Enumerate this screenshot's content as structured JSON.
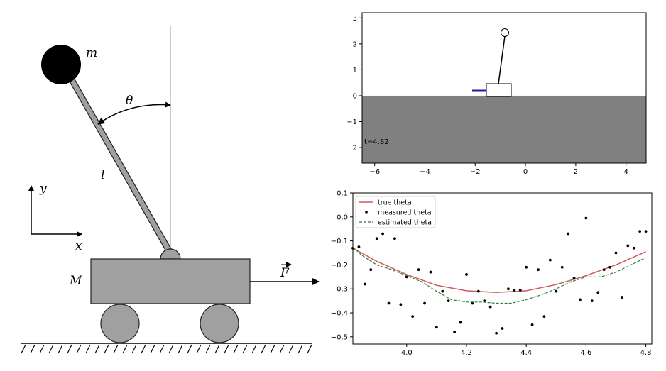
{
  "diagram": {
    "mass_label": "m",
    "angle_label": "θ",
    "length_label": "l",
    "y_axis_label": "y",
    "x_axis_label": "x",
    "cart_mass_label": "M",
    "force_label": "F"
  },
  "sim_plot": {
    "time_label": "t=4.82",
    "xlim": [
      -6.5,
      4.8
    ],
    "ylim": [
      -2.6,
      3.2
    ],
    "x_ticks": [
      "-6",
      "-4",
      "-2",
      "0",
      "2",
      "4"
    ],
    "x_tick_values": [
      -6,
      -4,
      -2,
      0,
      2,
      4
    ],
    "y_ticks": [
      "-2",
      "-1",
      "0",
      "1",
      "2",
      "3"
    ],
    "y_tick_values": [
      -2,
      -1,
      0,
      1,
      2,
      3
    ],
    "colors": {
      "ground": "#808080",
      "force_line": "#1f1f8f"
    }
  },
  "chart_data": {
    "type": "line",
    "xlim": [
      3.82,
      4.82
    ],
    "ylim": [
      -0.53,
      0.1
    ],
    "x_ticks": [
      "4.0",
      "4.2",
      "4.4",
      "4.6",
      "4.8"
    ],
    "x_tick_values": [
      4.0,
      4.2,
      4.4,
      4.6,
      4.8
    ],
    "y_ticks": [
      "0.1",
      "0.0",
      "-0.1",
      "-0.2",
      "-0.3",
      "-0.4",
      "-0.5"
    ],
    "y_tick_values": [
      0.1,
      0.0,
      -0.1,
      -0.2,
      -0.3,
      -0.4,
      -0.5
    ],
    "legend_position": "top-left",
    "series": [
      {
        "name": "true theta",
        "style": "solid",
        "color": "#cd5c5c",
        "x": [
          3.82,
          3.9,
          4.0,
          4.1,
          4.2,
          4.3,
          4.4,
          4.5,
          4.6,
          4.7,
          4.8
        ],
        "y": [
          -0.13,
          -0.185,
          -0.24,
          -0.285,
          -0.308,
          -0.315,
          -0.308,
          -0.282,
          -0.245,
          -0.2,
          -0.145
        ]
      },
      {
        "name": "measured theta",
        "style": "markers",
        "color": "#000000",
        "x": [
          3.82,
          3.84,
          3.86,
          3.88,
          3.9,
          3.92,
          3.94,
          3.96,
          3.98,
          4.0,
          4.02,
          4.04,
          4.06,
          4.08,
          4.1,
          4.12,
          4.14,
          4.16,
          4.18,
          4.2,
          4.22,
          4.24,
          4.26,
          4.28,
          4.3,
          4.32,
          4.34,
          4.36,
          4.38,
          4.4,
          4.42,
          4.44,
          4.46,
          4.48,
          4.5,
          4.52,
          4.54,
          4.56,
          4.58,
          4.6,
          4.62,
          4.64,
          4.66,
          4.68,
          4.7,
          4.72,
          4.74,
          4.76,
          4.78,
          4.8
        ],
        "y": [
          -0.13,
          -0.125,
          -0.28,
          -0.22,
          -0.09,
          -0.07,
          -0.36,
          -0.09,
          -0.365,
          -0.25,
          -0.415,
          -0.22,
          -0.36,
          -0.23,
          -0.46,
          -0.31,
          -0.35,
          -0.48,
          -0.44,
          -0.24,
          -0.36,
          -0.31,
          -0.35,
          -0.375,
          -0.485,
          -0.465,
          -0.3,
          -0.305,
          -0.305,
          -0.21,
          -0.45,
          -0.22,
          -0.415,
          -0.18,
          -0.31,
          -0.21,
          -0.07,
          -0.255,
          -0.345,
          -0.005,
          -0.35,
          -0.315,
          -0.22,
          -0.21,
          -0.15,
          -0.335,
          -0.12,
          -0.13,
          -0.06,
          -0.06
        ]
      },
      {
        "name": "estimated theta",
        "style": "dashed",
        "color": "#2e7d32",
        "x": [
          3.82,
          3.85,
          3.9,
          3.95,
          4.0,
          4.05,
          4.1,
          4.15,
          4.2,
          4.25,
          4.3,
          4.35,
          4.4,
          4.45,
          4.5,
          4.55,
          4.6,
          4.65,
          4.7,
          4.75,
          4.8
        ],
        "y": [
          -0.125,
          -0.16,
          -0.2,
          -0.22,
          -0.245,
          -0.27,
          -0.31,
          -0.345,
          -0.355,
          -0.355,
          -0.36,
          -0.36,
          -0.345,
          -0.325,
          -0.3,
          -0.27,
          -0.25,
          -0.25,
          -0.23,
          -0.2,
          -0.17
        ]
      }
    ]
  }
}
